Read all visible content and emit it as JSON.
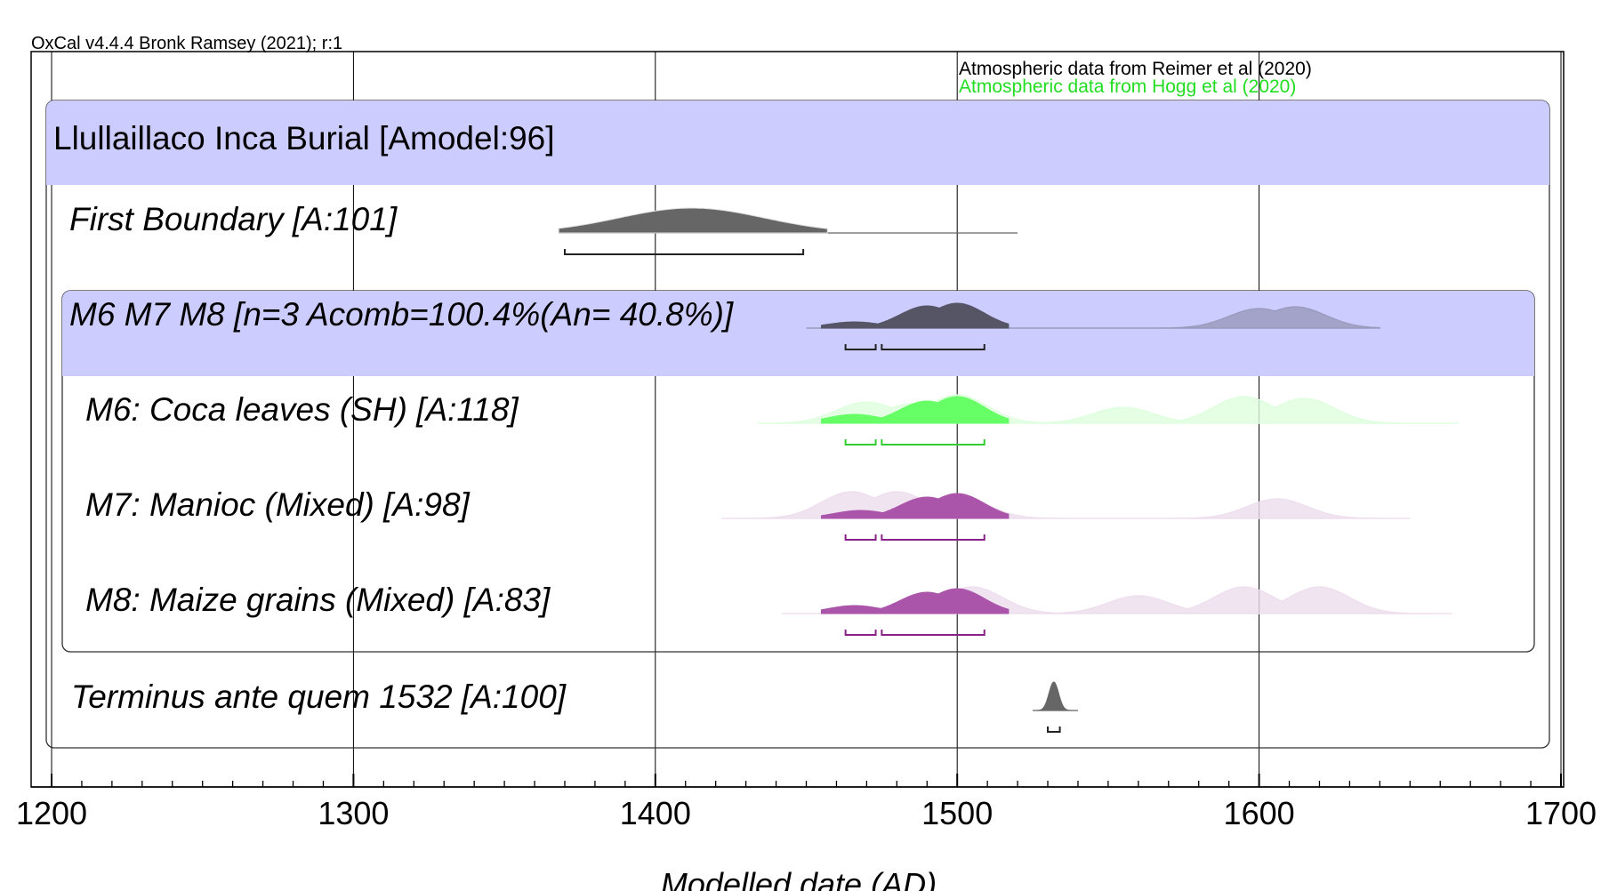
{
  "header": {
    "software": "OxCal v4.4.4 Bronk Ramsey (2021); r:1"
  },
  "credits": [
    {
      "text": "Atmospheric data from Reimer et al (2020)",
      "color": "#000000"
    },
    {
      "text": "Atmospheric data from Hogg et al (2020)",
      "color": "#22dd22"
    }
  ],
  "chart_data": {
    "type": "area",
    "xlabel": "Modelled date (AD)",
    "xlim": [
      1200,
      1700
    ],
    "x_ticks": [
      1200,
      1300,
      1400,
      1500,
      1600,
      1700
    ],
    "minor_tick_step": 10,
    "grid": true,
    "groups": [
      {
        "title": "Llullaillaco Inca Burial [Amodel:96]",
        "color": "#ccccff"
      },
      {
        "title": "M6 M7 M8 [n=3 Acomb=100.4%(An= 40.8%)]",
        "color": "#ccccff"
      }
    ],
    "rows": [
      {
        "label": "First Boundary [A:101]",
        "color": "#666666",
        "outline": "#dddddd",
        "range": [
          1368,
          1520
        ],
        "peaks": [
          [
            1412,
            28
          ]
        ],
        "hpd": [
          [
            1370,
            1449
          ]
        ]
      },
      {
        "label": "M6 M7 M8 [n=3 Acomb=100.4%(An= 40.8%)]",
        "color": "#555566",
        "prior_color": "#9999bb",
        "range": [
          1450,
          1640
        ],
        "peaks": [
          [
            1466,
            7
          ],
          [
            1490,
            25
          ],
          [
            1500,
            28
          ]
        ],
        "prior_peaks": [
          [
            1600,
            22
          ],
          [
            1612,
            24
          ]
        ],
        "hpd": [
          [
            1463,
            1473
          ],
          [
            1475,
            1509
          ]
        ]
      },
      {
        "label": "M6: Coca leaves (SH) [A:118]",
        "color": "#66ff66",
        "prior_color": "#ddffdd",
        "range": [
          1434,
          1666
        ],
        "peaks": [
          [
            1466,
            10
          ],
          [
            1490,
            25
          ],
          [
            1500,
            30
          ]
        ],
        "prior_peaks": [
          [
            1470,
            24
          ],
          [
            1485,
            22
          ],
          [
            1500,
            32
          ],
          [
            1555,
            18
          ],
          [
            1595,
            30
          ],
          [
            1615,
            28
          ]
        ],
        "hpd": [
          [
            1463,
            1473
          ],
          [
            1475,
            1509
          ]
        ]
      },
      {
        "label": "M7: Manioc (Mixed) [A:98]",
        "color": "#aa55aa",
        "prior_color": "#eeddee",
        "range": [
          1422,
          1650
        ],
        "peaks": [
          [
            1468,
            9
          ],
          [
            1490,
            24
          ],
          [
            1500,
            28
          ]
        ],
        "prior_peaks": [
          [
            1465,
            30
          ],
          [
            1480,
            30
          ],
          [
            1500,
            25
          ],
          [
            1606,
            22
          ]
        ],
        "hpd": [
          [
            1463,
            1473
          ],
          [
            1475,
            1509
          ]
        ]
      },
      {
        "label": "M8: Maize grains (Mixed) [A:83]",
        "color": "#aa55aa",
        "prior_color": "#eeddee",
        "range": [
          1442,
          1664
        ],
        "peaks": [
          [
            1466,
            9
          ],
          [
            1490,
            24
          ],
          [
            1500,
            28
          ]
        ],
        "prior_peaks": [
          [
            1505,
            30
          ],
          [
            1560,
            20
          ],
          [
            1595,
            30
          ],
          [
            1620,
            30
          ]
        ],
        "hpd": [
          [
            1463,
            1473
          ],
          [
            1475,
            1509
          ]
        ]
      },
      {
        "label": "Terminus ante quem 1532 [A:100]",
        "color": "#666666",
        "range": [
          1525,
          1540
        ],
        "peaks": [
          [
            1532,
            32
          ]
        ],
        "hpd": [
          [
            1530,
            1534
          ]
        ]
      }
    ]
  }
}
